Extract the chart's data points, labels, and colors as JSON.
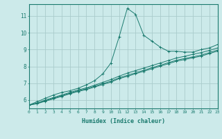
{
  "title": "",
  "xlabel": "Humidex (Indice chaleur)",
  "bg_color": "#cceaea",
  "line_color": "#1a7a6e",
  "grid_color": "#aacccc",
  "xmin": 0,
  "xmax": 23,
  "ymin": 5.5,
  "ymax": 11.7,
  "yticks": [
    6,
    7,
    8,
    9,
    10,
    11
  ],
  "xticks": [
    0,
    1,
    2,
    3,
    4,
    5,
    6,
    7,
    8,
    9,
    10,
    11,
    12,
    13,
    14,
    15,
    16,
    17,
    18,
    19,
    20,
    21,
    22,
    23
  ],
  "lines": [
    {
      "x": [
        0,
        1,
        2,
        3,
        4,
        5,
        6,
        7,
        8,
        9,
        10,
        11,
        12,
        13,
        14,
        15,
        16,
        17,
        18,
        19,
        20,
        21,
        22,
        23
      ],
      "y": [
        5.7,
        5.9,
        6.1,
        6.3,
        6.45,
        6.55,
        6.7,
        6.9,
        7.15,
        7.55,
        8.2,
        9.75,
        11.45,
        11.1,
        9.85,
        9.5,
        9.15,
        8.9,
        8.9,
        8.85,
        8.85,
        9.0,
        9.1,
        9.3
      ]
    },
    {
      "x": [
        0,
        1,
        2,
        3,
        4,
        5,
        6,
        7,
        8,
        9,
        10,
        11,
        12,
        13,
        14,
        15,
        16,
        17,
        18,
        19,
        20,
        21,
        22,
        23
      ],
      "y": [
        5.7,
        5.82,
        6.0,
        6.15,
        6.3,
        6.45,
        6.6,
        6.72,
        6.88,
        7.05,
        7.22,
        7.42,
        7.6,
        7.75,
        7.9,
        8.05,
        8.2,
        8.35,
        8.5,
        8.6,
        8.72,
        8.82,
        8.95,
        9.1
      ]
    },
    {
      "x": [
        0,
        1,
        2,
        3,
        4,
        5,
        6,
        7,
        8,
        9,
        10,
        11,
        12,
        13,
        14,
        15,
        16,
        17,
        18,
        19,
        20,
        21,
        22,
        23
      ],
      "y": [
        5.7,
        5.8,
        5.96,
        6.1,
        6.25,
        6.4,
        6.55,
        6.67,
        6.82,
        6.97,
        7.12,
        7.32,
        7.47,
        7.62,
        7.77,
        7.92,
        8.07,
        8.22,
        8.37,
        8.47,
        8.57,
        8.67,
        8.82,
        8.97
      ]
    },
    {
      "x": [
        0,
        1,
        2,
        3,
        4,
        5,
        6,
        7,
        8,
        9,
        10,
        11,
        12,
        13,
        14,
        15,
        16,
        17,
        18,
        19,
        20,
        21,
        22,
        23
      ],
      "y": [
        5.7,
        5.78,
        5.93,
        6.07,
        6.22,
        6.37,
        6.51,
        6.62,
        6.77,
        6.92,
        7.07,
        7.27,
        7.41,
        7.56,
        7.71,
        7.86,
        8.01,
        8.16,
        8.31,
        8.41,
        8.51,
        8.61,
        8.76,
        8.91
      ]
    }
  ]
}
